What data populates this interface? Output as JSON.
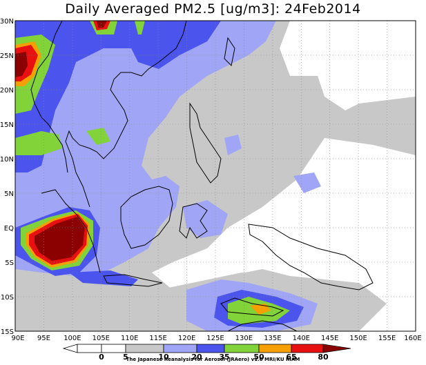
{
  "title": "Daily Averaged PM2.5 [ug/m3]: 24Feb2014",
  "credit": "The Japanese Reanalysis for Aerosol (JRAero) v1.0 MRI/KU RIAM",
  "lat_labels": [
    "30N",
    "25N",
    "20N",
    "15N",
    "10N",
    "5N",
    "EQ",
    "5S",
    "10S",
    "15S"
  ],
  "lon_labels": [
    "90E",
    "95E",
    "100E",
    "105E",
    "110E",
    "115E",
    "120E",
    "125E",
    "130E",
    "135E",
    "140E",
    "145E",
    "150E",
    "155E",
    "160E"
  ],
  "colorbar": {
    "levels": [
      "0",
      "5",
      "10",
      "20",
      "35",
      "50",
      "65",
      "80"
    ],
    "colors": [
      "#ffffff",
      "#ffffff",
      "#c8c8c8",
      "#a0a6f5",
      "#4b55ee",
      "#82d23a",
      "#f5a000",
      "#e81010",
      "#8b0000"
    ]
  },
  "palette": {
    "ocean": "#ffffff",
    "gray": "#c8c8c8",
    "lightblue": "#a0a6f5",
    "blue": "#4b55ee",
    "green": "#82d23a",
    "orange": "#f5a000",
    "red": "#e81010",
    "darkred": "#8b0000"
  }
}
